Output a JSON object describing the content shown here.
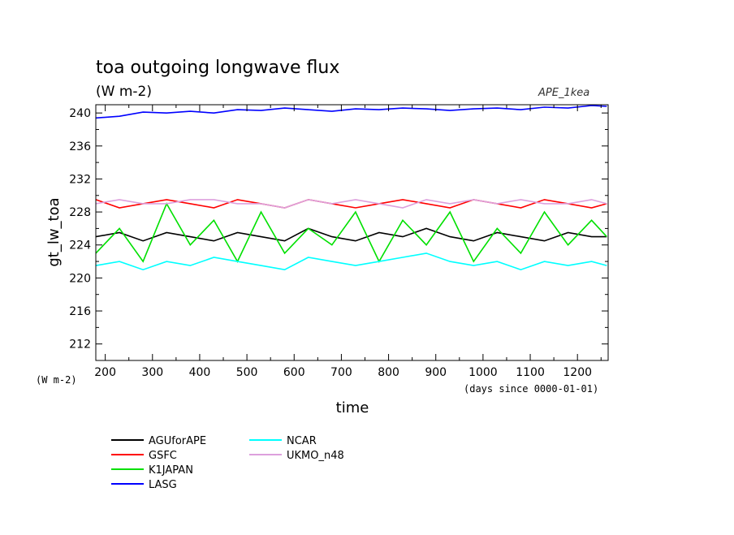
{
  "chart_data": {
    "type": "line",
    "title": "toa outgoing longwave flux",
    "subtitle": "(W m-2)",
    "xlabel": "time",
    "ylabel": "gt_lw_toa",
    "y_units_label": "(W m-2)",
    "x_units_label": "(days since 0000-01-01)",
    "watermark": "APE_1kea",
    "xlim": [
      180,
      1265
    ],
    "ylim": [
      210,
      241
    ],
    "x_ticks": [
      200,
      300,
      400,
      500,
      600,
      700,
      800,
      900,
      1000,
      1100,
      1200
    ],
    "x_tick_labels": [
      "200",
      "300",
      "400",
      "500",
      "600",
      "700",
      "800",
      "900",
      "1000",
      "1100",
      "1200"
    ],
    "y_ticks": [
      212,
      216,
      220,
      224,
      228,
      232,
      236,
      240
    ],
    "y_tick_labels": [
      "212",
      "216",
      "220",
      "224",
      "228",
      "232",
      "236",
      "240"
    ],
    "grid": false,
    "legend_position": "bottom-left",
    "x": [
      180,
      230,
      280,
      330,
      380,
      430,
      480,
      530,
      580,
      630,
      680,
      730,
      780,
      830,
      880,
      930,
      980,
      1030,
      1080,
      1130,
      1180,
      1230,
      1262
    ],
    "series": [
      {
        "name": "AGUforAPE",
        "color": "#000000",
        "values": [
          225,
          225.5,
          224.5,
          225.5,
          225,
          224.5,
          225.5,
          225,
          224.5,
          226,
          225,
          224.5,
          225.5,
          225,
          226,
          225,
          224.5,
          225.5,
          225,
          224.5,
          225.5,
          225,
          225
        ]
      },
      {
        "name": "GSFC",
        "color": "#ff0000",
        "values": [
          229.5,
          228.5,
          229,
          229.5,
          229,
          228.5,
          229.5,
          229,
          228.5,
          229.5,
          229,
          228.5,
          229,
          229.5,
          229,
          228.5,
          229.5,
          229,
          228.5,
          229.5,
          229,
          228.5,
          229
        ]
      },
      {
        "name": "K1JAPAN",
        "color": "#00e000",
        "values": [
          223,
          226,
          222,
          229,
          224,
          227,
          222,
          228,
          223,
          226,
          224,
          228,
          222,
          227,
          224,
          228,
          222,
          226,
          223,
          228,
          224,
          227,
          225
        ]
      },
      {
        "name": "LASG",
        "color": "#0000ff",
        "values": [
          239.4,
          239.6,
          240.1,
          240,
          240.2,
          240,
          240.4,
          240.3,
          240.6,
          240.4,
          240.2,
          240.5,
          240.4,
          240.6,
          240.5,
          240.3,
          240.5,
          240.6,
          240.4,
          240.7,
          240.6,
          240.9,
          240.8
        ]
      },
      {
        "name": "NCAR",
        "color": "#00ffff",
        "values": [
          221.5,
          222,
          221,
          222,
          221.5,
          222.5,
          222,
          221.5,
          221,
          222.5,
          222,
          221.5,
          222,
          222.5,
          223,
          222,
          221.5,
          222,
          221,
          222,
          221.5,
          222,
          221.5
        ]
      },
      {
        "name": "UKMO_n48",
        "color": "#dda0dd",
        "values": [
          229,
          229.5,
          229,
          229,
          229.5,
          229.5,
          229,
          229,
          228.5,
          229.5,
          229,
          229.5,
          229,
          228.5,
          229.5,
          229,
          229.5,
          229,
          229.5,
          229,
          229,
          229.5,
          229
        ]
      }
    ]
  }
}
